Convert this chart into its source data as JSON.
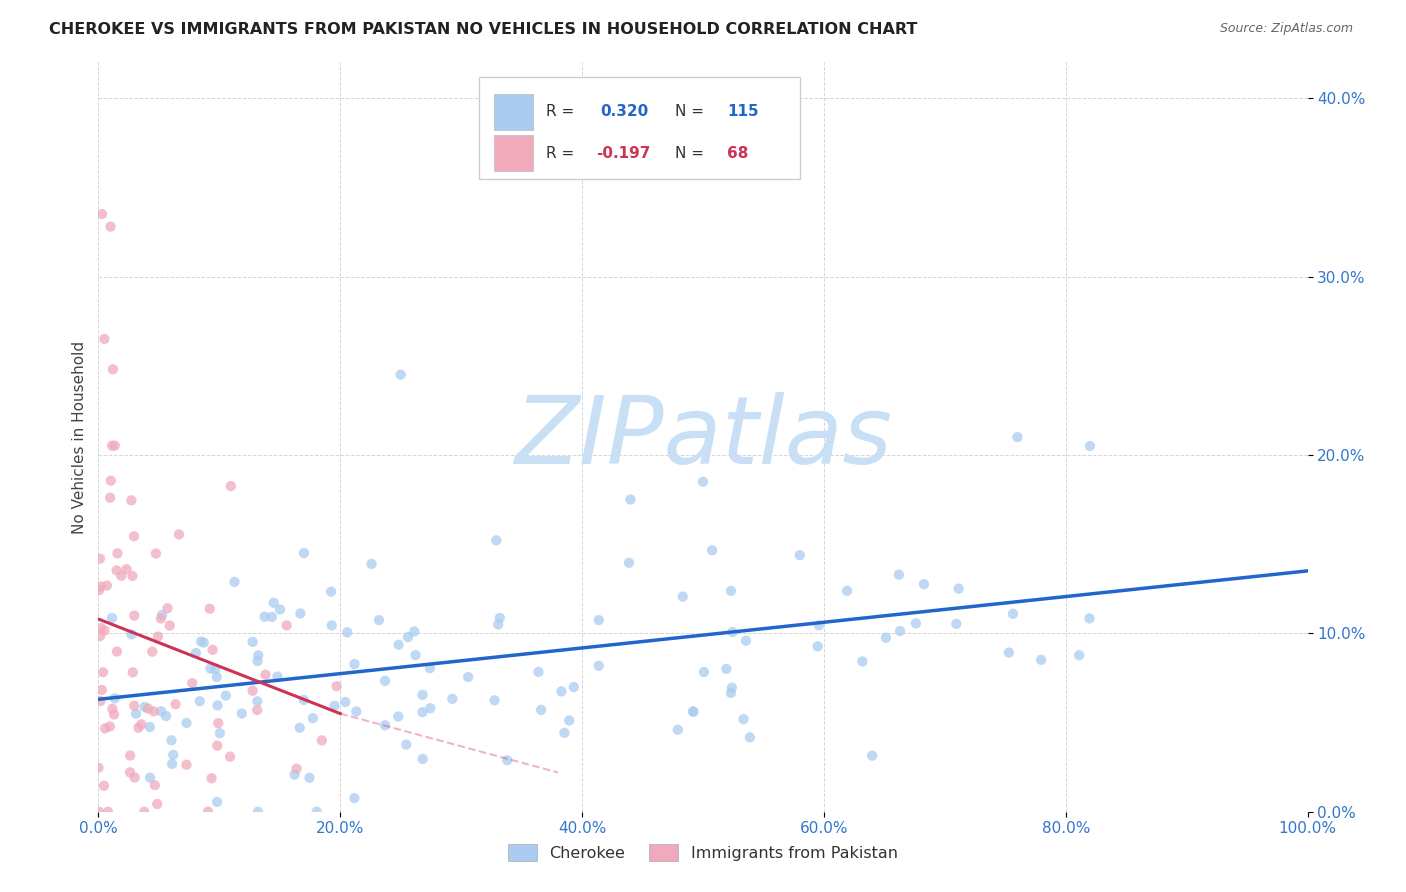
{
  "title": "CHEROKEE VS IMMIGRANTS FROM PAKISTAN NO VEHICLES IN HOUSEHOLD CORRELATION CHART",
  "source": "Source: ZipAtlas.com",
  "ylabel": "No Vehicles in Household",
  "legend_labels": [
    "Cherokee",
    "Immigrants from Pakistan"
  ],
  "cherokee_R": 0.32,
  "cherokee_N": 115,
  "pakistan_R": -0.197,
  "pakistan_N": 68,
  "cherokee_color": "#aaccf0",
  "cherokee_line_color": "#2266cc",
  "pakistan_color": "#f0aabc",
  "pakistan_line_color": "#cc3355",
  "watermark_color": "#c8dff5",
  "background_color": "#ffffff",
  "xlim": [
    0.0,
    1.0
  ],
  "ylim": [
    0.0,
    0.42
  ],
  "xticks": [
    0.0,
    0.2,
    0.4,
    0.6,
    0.8,
    1.0
  ],
  "yticks": [
    0.0,
    0.1,
    0.2,
    0.3,
    0.4
  ],
  "title_fontsize": 11.5,
  "source_fontsize": 9,
  "tick_fontsize": 11,
  "ylabel_fontsize": 11,
  "scatter_size": 55,
  "scatter_alpha": 0.75,
  "cherokee_line_y0": 0.063,
  "cherokee_line_y1": 0.135,
  "pakistan_line_x0": 0.0,
  "pakistan_line_y0": 0.108,
  "pakistan_line_x1": 0.2,
  "pakistan_line_y1": 0.055
}
